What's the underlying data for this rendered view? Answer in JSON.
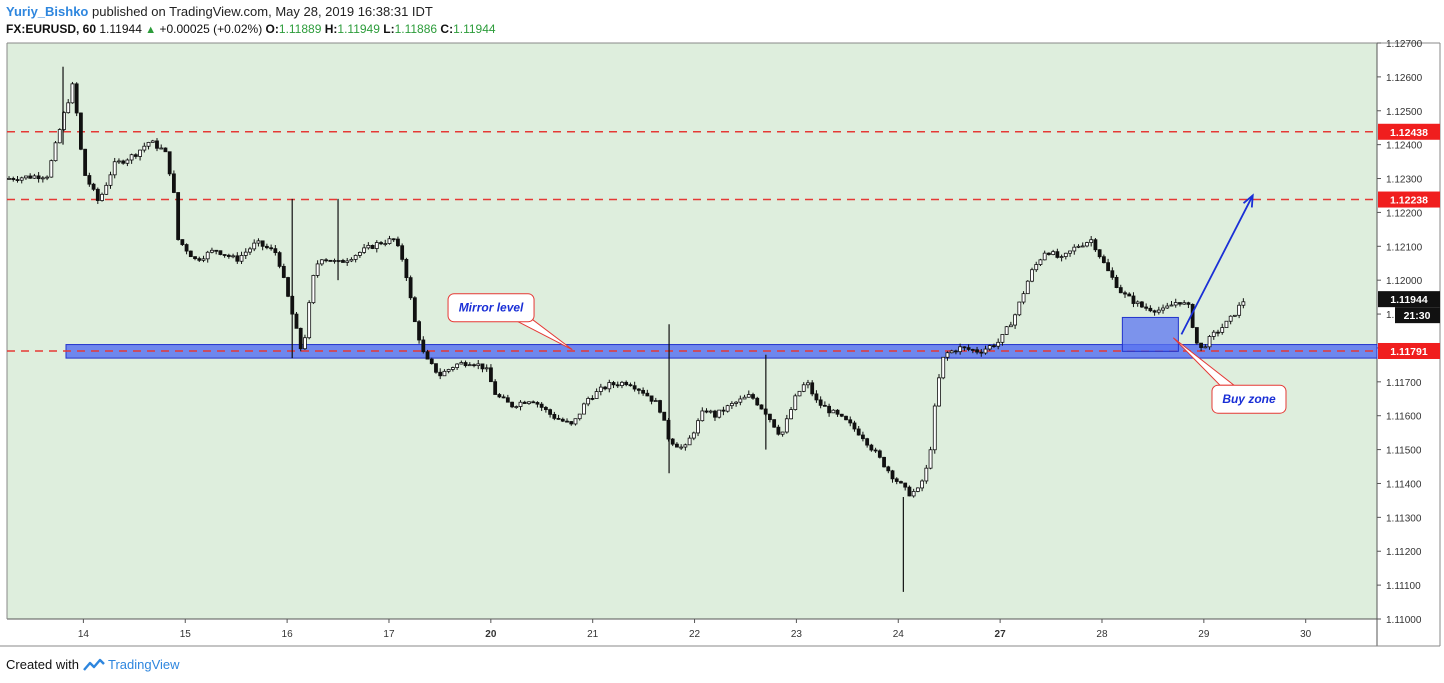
{
  "header": {
    "author": "Yuriy_Bishko",
    "published": "published on TradingView.com, May 28, 2019 16:38:31 IDT",
    "symbol": "FX:EURUSD, 60",
    "last": "1.11944",
    "change": "+0.00025 (+0.02%)",
    "o_label": "O:",
    "o": "1.11889",
    "h_label": "H:",
    "h": "1.11949",
    "l_label": "L:",
    "l": "1.11886",
    "c_label": "C:",
    "c": "1.11944"
  },
  "footer": {
    "created_with": "Created with",
    "brand": "TradingView"
  },
  "colors": {
    "chart_bg": "#deeedd",
    "level_line": "#e53935",
    "level_label_bg": "#f01e1e",
    "zone_fill": "#5b74f0",
    "zone_stroke": "#2233cc",
    "arrow": "#1a2fd6",
    "callout_border": "#e53935",
    "callout_text": "#1a2fd6",
    "candle": "#111111"
  },
  "chart_data": {
    "type": "candlestick",
    "y_axis": {
      "min": 1.11,
      "max": 1.127,
      "ticks": [
        "1.11000",
        "1.11100",
        "1.11200",
        "1.11300",
        "1.11400",
        "1.11500",
        "1.11600",
        "1.11700",
        "1.11800",
        "1.11900",
        "1.12000",
        "1.12100",
        "1.12200",
        "1.12300",
        "1.12400",
        "1.12500",
        "1.12600",
        "1.12700"
      ]
    },
    "x_axis": {
      "labels": [
        {
          "text": "14",
          "pos": 0.4,
          "bold": false
        },
        {
          "text": "15",
          "pos": 1.4,
          "bold": false
        },
        {
          "text": "16",
          "pos": 2.4,
          "bold": false
        },
        {
          "text": "17",
          "pos": 3.4,
          "bold": false
        },
        {
          "text": "20",
          "pos": 4.4,
          "bold": true
        },
        {
          "text": "21",
          "pos": 5.4,
          "bold": false
        },
        {
          "text": "22",
          "pos": 6.4,
          "bold": false
        },
        {
          "text": "23",
          "pos": 7.4,
          "bold": false
        },
        {
          "text": "24",
          "pos": 8.4,
          "bold": false
        },
        {
          "text": "27",
          "pos": 9.4,
          "bold": true
        },
        {
          "text": "28",
          "pos": 10.4,
          "bold": false
        },
        {
          "text": "29",
          "pos": 11.4,
          "bold": false
        },
        {
          "text": "30",
          "pos": 12.4,
          "bold": false
        }
      ],
      "range": [
        -0.35,
        13.1
      ]
    },
    "levels": [
      {
        "value": 1.12438,
        "label": "1.12438"
      },
      {
        "value": 1.12238,
        "label": "1.12238"
      },
      {
        "value": 1.11791,
        "label": "1.11791"
      }
    ],
    "price_tags": {
      "last": "1.11944",
      "countdown": "21:30"
    },
    "mirror_zone": {
      "x_start": 0.2,
      "x_end": 13.1,
      "y_low": 1.1177,
      "y_high": 1.1181
    },
    "buy_zone": {
      "x_start": 10.6,
      "x_end": 10.15,
      "x_end_real": 11.15,
      "y_low": 1.1179,
      "y_high": 1.1189
    },
    "arrow": {
      "from": [
        11.18,
        1.1184
      ],
      "to": [
        11.88,
        1.1225
      ]
    },
    "annotations": [
      {
        "text": "Mirror level",
        "box_x": 3.98,
        "box_y": 1.1196,
        "tip": [
          5.2,
          1.11795
        ]
      },
      {
        "text": "Buy zone",
        "box_x": 11.48,
        "box_y": 1.1169,
        "tip": [
          11.1,
          1.1183
        ]
      }
    ],
    "path": [
      [
        -0.35,
        1.123
      ],
      [
        0.05,
        1.1231
      ],
      [
        0.2,
        1.1248
      ],
      [
        0.3,
        1.1258
      ],
      [
        0.4,
        1.1232
      ],
      [
        0.55,
        1.1223
      ],
      [
        0.7,
        1.1234
      ],
      [
        0.9,
        1.1237
      ],
      [
        1.05,
        1.1241
      ],
      [
        1.2,
        1.1238
      ],
      [
        1.28,
        1.1228
      ],
      [
        1.33,
        1.1212
      ],
      [
        1.5,
        1.1206
      ],
      [
        1.7,
        1.1209
      ],
      [
        1.9,
        1.1206
      ],
      [
        2.1,
        1.1211
      ],
      [
        2.3,
        1.1208
      ],
      [
        2.45,
        1.119
      ],
      [
        2.55,
        1.1178
      ],
      [
        2.65,
        1.12
      ],
      [
        2.72,
        1.1207
      ],
      [
        2.9,
        1.1205
      ],
      [
        3.1,
        1.1208
      ],
      [
        3.3,
        1.1211
      ],
      [
        3.45,
        1.1212
      ],
      [
        3.55,
        1.1205
      ],
      [
        3.65,
        1.1188
      ],
      [
        3.75,
        1.1177
      ],
      [
        3.9,
        1.1172
      ],
      [
        4.05,
        1.1175
      ],
      [
        4.2,
        1.1176
      ],
      [
        4.35,
        1.1174
      ],
      [
        4.45,
        1.1166
      ],
      [
        4.6,
        1.1163
      ],
      [
        4.8,
        1.1165
      ],
      [
        5.0,
        1.116
      ],
      [
        5.2,
        1.1157
      ],
      [
        5.35,
        1.1165
      ],
      [
        5.55,
        1.1169
      ],
      [
        5.75,
        1.117
      ],
      [
        5.9,
        1.1167
      ],
      [
        6.05,
        1.1163
      ],
      [
        6.15,
        1.1153
      ],
      [
        6.3,
        1.115
      ],
      [
        6.5,
        1.1162
      ],
      [
        6.6,
        1.116
      ],
      [
        6.75,
        1.1163
      ],
      [
        6.95,
        1.1166
      ],
      [
        7.1,
        1.1161
      ],
      [
        7.25,
        1.1154
      ],
      [
        7.4,
        1.1166
      ],
      [
        7.5,
        1.117
      ],
      [
        7.6,
        1.1164
      ],
      [
        7.75,
        1.1161
      ],
      [
        7.9,
        1.1158
      ],
      [
        8.05,
        1.1154
      ],
      [
        8.2,
        1.1148
      ],
      [
        8.35,
        1.1142
      ],
      [
        8.5,
        1.1137
      ],
      [
        8.6,
        1.1138
      ],
      [
        8.7,
        1.1146
      ],
      [
        8.78,
        1.1168
      ],
      [
        8.85,
        1.1178
      ],
      [
        9.0,
        1.118
      ],
      [
        9.2,
        1.1179
      ],
      [
        9.4,
        1.1182
      ],
      [
        9.55,
        1.119
      ],
      [
        9.7,
        1.1202
      ],
      [
        9.85,
        1.1209
      ],
      [
        10.0,
        1.1206
      ],
      [
        10.15,
        1.121
      ],
      [
        10.3,
        1.1212
      ],
      [
        10.45,
        1.1203
      ],
      [
        10.6,
        1.1196
      ],
      [
        10.8,
        1.1192
      ],
      [
        11.0,
        1.1191
      ],
      [
        11.15,
        1.1194
      ],
      [
        11.25,
        1.1192
      ],
      [
        11.35,
        1.1179
      ],
      [
        11.5,
        1.1184
      ],
      [
        11.65,
        1.1188
      ],
      [
        11.8,
        1.11944
      ]
    ],
    "spikes": [
      {
        "x": 2.45,
        "high": 1.1224,
        "low": 1.1177
      },
      {
        "x": 2.9,
        "high": 1.1224,
        "low": 1.12
      },
      {
        "x": 6.15,
        "high": 1.1187,
        "low": 1.1143
      },
      {
        "x": 7.1,
        "high": 1.1178,
        "low": 1.115
      },
      {
        "x": 8.45,
        "high": 1.1136,
        "low": 1.1108
      },
      {
        "x": 0.2,
        "high": 1.1263,
        "low": 1.124
      }
    ]
  }
}
